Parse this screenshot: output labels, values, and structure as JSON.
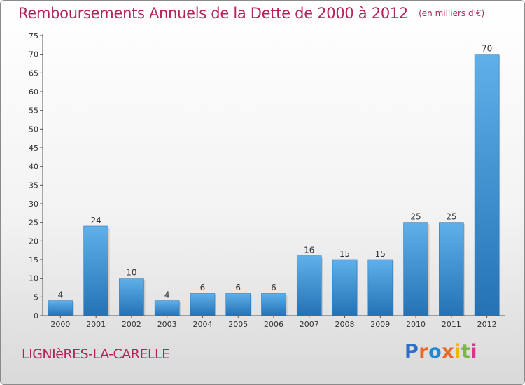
{
  "chart_data": {
    "type": "bar",
    "title": "Remboursements Annuels de la Dette de 2000 à 2012",
    "subtitle": "(en milliers d'€)",
    "categories": [
      "2000",
      "2001",
      "2002",
      "2003",
      "2004",
      "2005",
      "2006",
      "2007",
      "2008",
      "2009",
      "2010",
      "2011",
      "2012"
    ],
    "values": [
      4,
      24,
      10,
      4,
      6,
      6,
      6,
      16,
      15,
      15,
      25,
      25,
      70
    ],
    "value_labels": [
      "4",
      "24",
      "10",
      "4",
      "6",
      "6",
      "6",
      "16",
      "15",
      "15",
      "25",
      "25",
      "70"
    ],
    "ylim": [
      0,
      75
    ],
    "yticks": [
      0,
      5,
      10,
      15,
      20,
      25,
      30,
      35,
      40,
      45,
      50,
      55,
      60,
      65,
      70,
      75
    ],
    "grid": false,
    "bar_color": "#4a9fdc",
    "bar_color_dark": "#2472b5"
  },
  "footer": {
    "commune": "LIGNIèRES-LA-CARELLE",
    "logo_text": "Proxiti",
    "logo_colors": [
      "#2d6fc4",
      "#e8682b",
      "#1e88d6",
      "#e8682b",
      "#f4b400",
      "#7ab648",
      "#d9368b"
    ]
  },
  "colors": {
    "title": "#b4235c",
    "axis": "#333333"
  }
}
